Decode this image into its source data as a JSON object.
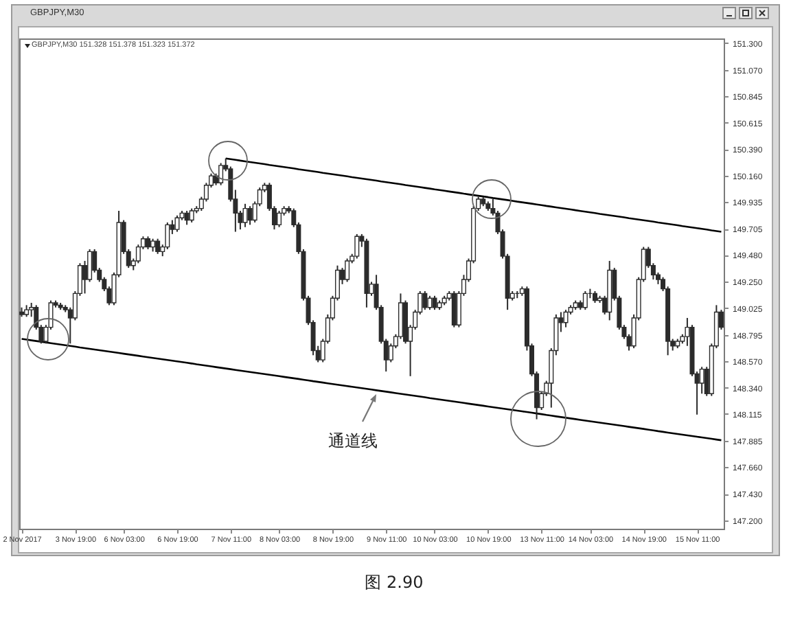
{
  "chart_data": {
    "type": "candlestick",
    "title": "GBPJPY,M30",
    "subtitle": "GBPJPY,M30 151.328 151.378 151.323 151.372",
    "categories": [
      "2 Nov 2017",
      null,
      null,
      null,
      null,
      null,
      null,
      null,
      null,
      null,
      null,
      "3 Nov 19:00",
      null,
      null,
      null,
      null,
      null,
      null,
      null,
      null,
      null,
      "6 Nov 03:00",
      null,
      null,
      null,
      null,
      null,
      null,
      null,
      null,
      null,
      null,
      "6 Nov 19:00",
      null,
      null,
      null,
      null,
      null,
      null,
      null,
      null,
      null,
      null,
      "7 Nov 11:00",
      null,
      null,
      null,
      null,
      null,
      null,
      null,
      null,
      null,
      "8 Nov 03:00",
      null,
      null,
      null,
      null,
      null,
      null,
      null,
      null,
      null,
      null,
      "8 Nov 19:00",
      null,
      null,
      null,
      null,
      null,
      null,
      null,
      null,
      null,
      null,
      "9 Nov 11:00",
      null,
      null,
      null,
      null,
      null,
      null,
      null,
      null,
      null,
      "10 Nov 03:00",
      null,
      null,
      null,
      null,
      null,
      null,
      null,
      null,
      null,
      null,
      "10 Nov 19:00",
      null,
      null,
      null,
      null,
      null,
      null,
      null,
      null,
      null,
      null,
      "13 Nov 11:00",
      null,
      null,
      null,
      null,
      null,
      null,
      null,
      null,
      null,
      "14 Nov 03:00",
      null,
      null,
      null,
      null,
      null,
      null,
      null,
      null,
      null,
      null,
      "14 Nov 19:00",
      null,
      null,
      null,
      null,
      null,
      null,
      null,
      null,
      null,
      null,
      "15 Nov 11:00",
      null,
      null,
      null,
      null,
      null
    ],
    "ohlc": [
      [
        148.99,
        149.03,
        148.95,
        148.97
      ],
      [
        148.97,
        149.05,
        148.95,
        149.01
      ],
      [
        149.01,
        149.07,
        148.95,
        149.03
      ],
      [
        149.03,
        149.05,
        148.84,
        148.86
      ],
      [
        148.86,
        148.88,
        148.72,
        148.74
      ],
      [
        148.74,
        148.88,
        148.72,
        148.86
      ],
      [
        148.86,
        149.09,
        148.84,
        149.07
      ],
      [
        149.07,
        149.09,
        149.03,
        149.05
      ],
      [
        149.05,
        149.07,
        149.01,
        149.03
      ],
      [
        149.03,
        149.05,
        148.99,
        149.01
      ],
      [
        149.01,
        149.03,
        148.72,
        148.94
      ],
      [
        148.94,
        149.17,
        148.92,
        149.15
      ],
      [
        149.15,
        149.41,
        149.13,
        149.39
      ],
      [
        149.39,
        149.43,
        149.15,
        149.27
      ],
      [
        149.27,
        149.53,
        149.25,
        149.51
      ],
      [
        149.51,
        149.53,
        149.33,
        149.35
      ],
      [
        149.35,
        149.37,
        149.25,
        149.27
      ],
      [
        149.27,
        149.29,
        149.17,
        149.19
      ],
      [
        149.19,
        149.21,
        149.05,
        149.07
      ],
      [
        149.07,
        149.33,
        149.05,
        149.31
      ],
      [
        149.31,
        149.86,
        149.29,
        149.76
      ],
      [
        149.76,
        149.78,
        149.49,
        149.51
      ],
      [
        149.51,
        149.53,
        149.37,
        149.39
      ],
      [
        149.39,
        149.45,
        149.35,
        149.43
      ],
      [
        149.43,
        149.57,
        149.41,
        149.55
      ],
      [
        149.55,
        149.64,
        149.53,
        149.62
      ],
      [
        149.62,
        149.64,
        149.53,
        149.55
      ],
      [
        149.55,
        149.62,
        149.51,
        149.6
      ],
      [
        149.6,
        149.62,
        149.49,
        149.51
      ],
      [
        149.51,
        149.57,
        149.47,
        149.55
      ],
      [
        149.55,
        149.76,
        149.53,
        149.74
      ],
      [
        149.74,
        149.78,
        149.66,
        149.7
      ],
      [
        149.7,
        149.82,
        149.68,
        149.8
      ],
      [
        149.8,
        149.86,
        149.78,
        149.84
      ],
      [
        149.84,
        149.86,
        149.74,
        149.78
      ],
      [
        149.78,
        149.88,
        149.76,
        149.86
      ],
      [
        149.86,
        149.9,
        149.84,
        149.88
      ],
      [
        149.88,
        149.98,
        149.86,
        149.96
      ],
      [
        149.96,
        150.1,
        149.94,
        150.08
      ],
      [
        150.08,
        150.18,
        150.06,
        150.16
      ],
      [
        150.16,
        150.18,
        150.08,
        150.1
      ],
      [
        150.1,
        150.27,
        150.08,
        150.25
      ],
      [
        150.25,
        150.31,
        150.2,
        150.22
      ],
      [
        150.22,
        150.24,
        149.94,
        149.96
      ],
      [
        149.96,
        150.04,
        149.68,
        149.84
      ],
      [
        149.84,
        149.86,
        149.7,
        149.76
      ],
      [
        149.76,
        149.92,
        149.72,
        149.88
      ],
      [
        149.88,
        149.9,
        149.74,
        149.78
      ],
      [
        149.78,
        149.94,
        149.76,
        149.92
      ],
      [
        149.92,
        150.06,
        149.9,
        150.04
      ],
      [
        150.04,
        150.1,
        150.02,
        150.08
      ],
      [
        150.08,
        150.1,
        149.86,
        149.88
      ],
      [
        149.88,
        149.9,
        149.7,
        149.74
      ],
      [
        149.74,
        149.86,
        149.72,
        149.84
      ],
      [
        149.84,
        149.9,
        149.82,
        149.88
      ],
      [
        149.88,
        149.9,
        149.84,
        149.86
      ],
      [
        149.86,
        149.88,
        149.72,
        149.74
      ],
      [
        149.74,
        149.76,
        149.49,
        149.51
      ],
      [
        149.51,
        149.53,
        149.09,
        149.11
      ],
      [
        149.11,
        149.13,
        148.88,
        148.9
      ],
      [
        148.9,
        148.92,
        148.62,
        148.66
      ],
      [
        148.66,
        148.7,
        148.56,
        148.58
      ],
      [
        148.58,
        148.76,
        148.56,
        148.74
      ],
      [
        148.74,
        148.97,
        148.72,
        148.94
      ],
      [
        148.94,
        149.13,
        148.92,
        149.11
      ],
      [
        149.11,
        149.39,
        149.09,
        149.35
      ],
      [
        149.35,
        149.37,
        149.23,
        149.27
      ],
      [
        149.27,
        149.45,
        149.25,
        149.43
      ],
      [
        149.43,
        149.49,
        149.41,
        149.47
      ],
      [
        149.47,
        149.66,
        149.45,
        149.64
      ],
      [
        149.64,
        149.66,
        149.55,
        149.6
      ],
      [
        149.6,
        149.62,
        149.03,
        149.15
      ],
      [
        149.15,
        149.25,
        149.13,
        149.23
      ],
      [
        149.23,
        149.31,
        149.01,
        149.03
      ],
      [
        149.03,
        149.05,
        148.72,
        148.74
      ],
      [
        148.74,
        148.76,
        148.48,
        148.58
      ],
      [
        148.58,
        148.72,
        148.56,
        148.7
      ],
      [
        148.7,
        148.8,
        148.68,
        148.78
      ],
      [
        148.78,
        149.15,
        148.76,
        149.07
      ],
      [
        149.07,
        149.09,
        148.72,
        148.74
      ],
      [
        148.74,
        148.88,
        148.44,
        148.86
      ],
      [
        148.86,
        149.01,
        148.84,
        148.99
      ],
      [
        148.99,
        149.17,
        148.97,
        149.15
      ],
      [
        149.15,
        149.17,
        149.01,
        149.03
      ],
      [
        149.03,
        149.13,
        149.01,
        149.11
      ],
      [
        149.11,
        149.13,
        149.01,
        149.03
      ],
      [
        149.03,
        149.09,
        149.01,
        149.07
      ],
      [
        149.07,
        149.13,
        149.05,
        149.11
      ],
      [
        149.11,
        149.17,
        149.09,
        149.15
      ],
      [
        149.15,
        149.17,
        148.86,
        148.88
      ],
      [
        148.88,
        149.17,
        148.86,
        149.15
      ],
      [
        149.15,
        149.31,
        149.13,
        149.27
      ],
      [
        149.27,
        149.45,
        149.25,
        149.43
      ],
      [
        149.43,
        149.9,
        149.41,
        149.88
      ],
      [
        149.88,
        149.98,
        149.86,
        149.96
      ],
      [
        149.96,
        149.98,
        149.9,
        149.92
      ],
      [
        149.92,
        149.94,
        149.86,
        149.88
      ],
      [
        149.88,
        149.96,
        149.82,
        149.84
      ],
      [
        149.84,
        149.86,
        149.66,
        149.68
      ],
      [
        149.68,
        149.7,
        149.45,
        149.47
      ],
      [
        149.47,
        149.49,
        149.01,
        149.11
      ],
      [
        149.11,
        149.17,
        149.09,
        149.15
      ],
      [
        149.15,
        149.17,
        149.11,
        149.15
      ],
      [
        149.15,
        149.21,
        149.13,
        149.19
      ],
      [
        149.19,
        149.21,
        148.66,
        148.7
      ],
      [
        148.7,
        148.72,
        148.44,
        148.46
      ],
      [
        148.46,
        148.48,
        148.07,
        148.17
      ],
      [
        148.17,
        148.31,
        148.15,
        148.29
      ],
      [
        148.29,
        148.4,
        148.27,
        148.38
      ],
      [
        148.38,
        148.68,
        148.17,
        148.66
      ],
      [
        148.66,
        148.97,
        148.62,
        148.94
      ],
      [
        148.94,
        148.99,
        148.82,
        148.9
      ],
      [
        148.9,
        149.01,
        148.86,
        148.99
      ],
      [
        148.99,
        149.05,
        148.97,
        149.03
      ],
      [
        149.03,
        149.09,
        149.01,
        149.07
      ],
      [
        149.07,
        149.09,
        149.01,
        149.03
      ],
      [
        149.03,
        149.17,
        149.01,
        149.15
      ],
      [
        149.15,
        149.19,
        149.11,
        149.15
      ],
      [
        149.15,
        149.17,
        149.07,
        149.09
      ],
      [
        149.09,
        149.13,
        149.07,
        149.11
      ],
      [
        149.11,
        149.13,
        148.97,
        148.99
      ],
      [
        148.99,
        149.43,
        148.92,
        149.35
      ],
      [
        149.35,
        149.37,
        149.09,
        149.11
      ],
      [
        149.11,
        149.13,
        148.84,
        148.86
      ],
      [
        148.86,
        148.88,
        148.76,
        148.78
      ],
      [
        148.78,
        148.8,
        148.66,
        148.7
      ],
      [
        148.7,
        148.97,
        148.68,
        148.94
      ],
      [
        148.94,
        149.29,
        148.92,
        149.27
      ],
      [
        149.27,
        149.55,
        149.25,
        149.53
      ],
      [
        149.53,
        149.55,
        149.37,
        149.39
      ],
      [
        149.39,
        149.41,
        149.27,
        149.31
      ],
      [
        149.31,
        149.33,
        149.23,
        149.27
      ],
      [
        149.27,
        149.29,
        149.17,
        149.19
      ],
      [
        149.19,
        149.21,
        148.62,
        148.74
      ],
      [
        148.74,
        148.76,
        148.66,
        148.7
      ],
      [
        148.7,
        148.76,
        148.68,
        148.74
      ],
      [
        148.74,
        148.8,
        148.72,
        148.78
      ],
      [
        148.78,
        148.94,
        148.7,
        148.86
      ],
      [
        148.86,
        148.88,
        148.44,
        148.46
      ],
      [
        148.46,
        148.48,
        148.11,
        148.38
      ],
      [
        148.38,
        148.52,
        148.29,
        148.5
      ],
      [
        148.5,
        148.52,
        148.27,
        148.29
      ],
      [
        148.29,
        148.72,
        148.27,
        148.7
      ],
      [
        148.7,
        149.05,
        148.68,
        148.99
      ],
      [
        148.99,
        149.01,
        148.84,
        148.86
      ]
    ],
    "color": "#2b2b2b",
    "series": [
      {
        "type": "line",
        "color": "#000000",
        "values": [
          null,
          null,
          null,
          null,
          null,
          null,
          null,
          null,
          null,
          null,
          null,
          null,
          null,
          null,
          null,
          null,
          null,
          null,
          null,
          null,
          null,
          null,
          null,
          null,
          null,
          null,
          null,
          null,
          null,
          null,
          null,
          null,
          null,
          null,
          null,
          null,
          null,
          null,
          null,
          null,
          null,
          null,
          150.31,
          150.304,
          150.298,
          150.291,
          150.285,
          150.279,
          150.273,
          150.267,
          150.261,
          150.254,
          150.248,
          150.242,
          150.236,
          150.23,
          150.224,
          150.217,
          150.211,
          150.205,
          150.199,
          150.193,
          150.186,
          150.18,
          150.174,
          150.168,
          150.162,
          150.156,
          150.149,
          150.143,
          150.137,
          150.131,
          150.125,
          150.119,
          150.112,
          150.106,
          150.1,
          150.094,
          150.088,
          150.081,
          150.075,
          150.069,
          150.063,
          150.057,
          150.051,
          150.044,
          150.038,
          150.032,
          150.026,
          150.02,
          150.014,
          150.007,
          150.001,
          149.995,
          149.989,
          149.983,
          149.977,
          149.97,
          149.964,
          149.958,
          149.952,
          149.946,
          149.939,
          149.933,
          149.927,
          149.921,
          149.915,
          149.909,
          149.902,
          149.896,
          149.89,
          149.884,
          149.878,
          149.872,
          149.865,
          149.859,
          149.853,
          149.847,
          149.841,
          149.834,
          149.828,
          149.822,
          149.816,
          149.81,
          149.804,
          149.797,
          149.791,
          149.785,
          149.779,
          149.773,
          149.767,
          149.76,
          149.754,
          149.748,
          149.742,
          149.736,
          149.729,
          149.723,
          149.717,
          149.711,
          149.705,
          149.699,
          149.692,
          149.686,
          149.68
        ]
      },
      {
        "type": "line",
        "color": "#000000",
        "values": [
          148.76,
          148.754,
          148.748,
          148.742,
          148.736,
          148.73,
          148.724,
          148.718,
          148.712,
          148.706,
          148.7,
          148.694,
          148.687,
          148.681,
          148.675,
          148.669,
          148.663,
          148.657,
          148.651,
          148.645,
          148.639,
          148.633,
          148.627,
          148.621,
          148.615,
          148.609,
          148.603,
          148.597,
          148.591,
          148.585,
          148.579,
          148.573,
          148.567,
          148.561,
          148.555,
          148.549,
          148.542,
          148.536,
          148.53,
          148.524,
          148.518,
          148.512,
          148.506,
          148.5,
          148.494,
          148.488,
          148.482,
          148.476,
          148.47,
          148.464,
          148.458,
          148.452,
          148.446,
          148.44,
          148.434,
          148.428,
          148.422,
          148.416,
          148.41,
          148.404,
          148.397,
          148.391,
          148.385,
          148.379,
          148.373,
          148.367,
          148.361,
          148.355,
          148.349,
          148.343,
          148.337,
          148.331,
          148.325,
          148.319,
          148.313,
          148.307,
          148.301,
          148.295,
          148.289,
          148.283,
          148.277,
          148.271,
          148.265,
          148.259,
          148.252,
          148.246,
          148.24,
          148.234,
          148.228,
          148.222,
          148.216,
          148.21,
          148.204,
          148.198,
          148.192,
          148.186,
          148.18,
          148.174,
          148.168,
          148.162,
          148.156,
          148.15,
          148.144,
          148.138,
          148.132,
          148.126,
          148.12,
          148.114,
          148.107,
          148.101,
          148.095,
          148.089,
          148.083,
          148.077,
          148.071,
          148.065,
          148.059,
          148.053,
          148.047,
          148.041,
          148.035,
          148.029,
          148.023,
          148.017,
          148.011,
          148.005,
          147.999,
          147.993,
          147.987,
          147.981,
          147.975,
          147.968,
          147.962,
          147.956,
          147.95,
          147.944,
          147.938,
          147.932,
          147.926,
          147.92,
          147.914,
          147.908,
          147.902,
          147.896,
          147.89
        ]
      }
    ],
    "ylim": [
      147.13,
      151.34
    ],
    "yticks": [
      {
        "value": 147.2,
        "label": "147.200"
      },
      {
        "value": 147.43,
        "label": "147.430"
      },
      {
        "value": 147.66,
        "label": "147.660"
      },
      147.885,
      148.115,
      {
        "value": 148.34,
        "label": "148.340"
      },
      {
        "value": 148.57,
        "label": "148.570"
      },
      148.795,
      149.025,
      {
        "value": 149.25,
        "label": "149.250"
      },
      {
        "value": 149.48,
        "label": "149.480"
      },
      149.705,
      149.935,
      {
        "value": 150.16,
        "label": "150.160"
      },
      {
        "value": 150.39,
        "label": "150.390"
      },
      150.615,
      150.845,
      {
        "value": 151.07,
        "label": "151.070"
      },
      {
        "value": 151.3,
        "label": "151.300"
      }
    ],
    "annotations": [
      "通道线",
      "图 2.90"
    ]
  }
}
